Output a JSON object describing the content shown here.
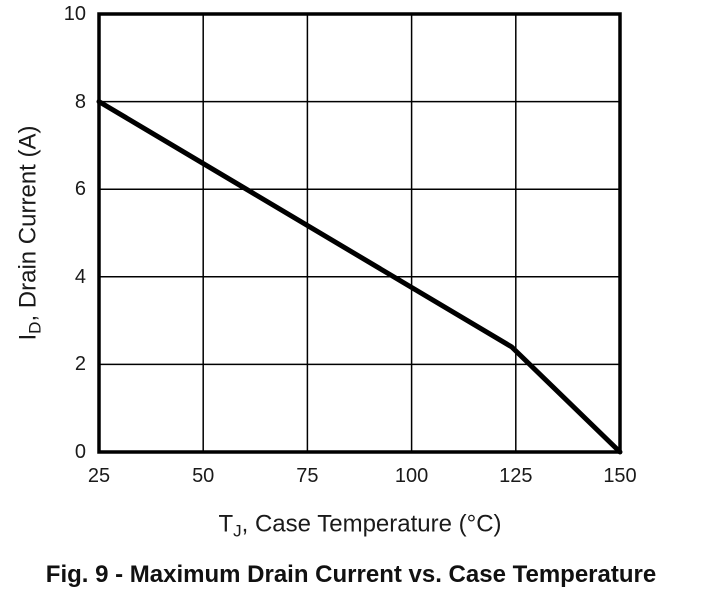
{
  "chart_data": {
    "type": "line",
    "title": "",
    "xlabel": {
      "pre": "T",
      "sub": "J",
      "post": ", Case Temperature (°C)"
    },
    "ylabel": {
      "pre": "I",
      "sub": "D",
      "post": ", Drain Current (A)"
    },
    "xlim": [
      25,
      150
    ],
    "ylim": [
      0,
      10
    ],
    "x_ticks": [
      25,
      50,
      75,
      100,
      125,
      150
    ],
    "y_ticks": [
      0,
      2,
      4,
      6,
      8,
      10
    ],
    "grid": true,
    "legend": "none",
    "colors": {
      "background": "#ffffff",
      "axis": "#000000",
      "gridline": "#000000",
      "line": "#000000",
      "text": "#1a1a1a"
    },
    "series": [
      {
        "name": "maximum-drain-current",
        "points": [
          [
            25,
            8
          ],
          [
            124,
            2.4
          ],
          [
            150,
            0
          ]
        ]
      }
    ]
  },
  "caption": "Fig. 9 - Maximum Drain Current vs. Case Temperature"
}
